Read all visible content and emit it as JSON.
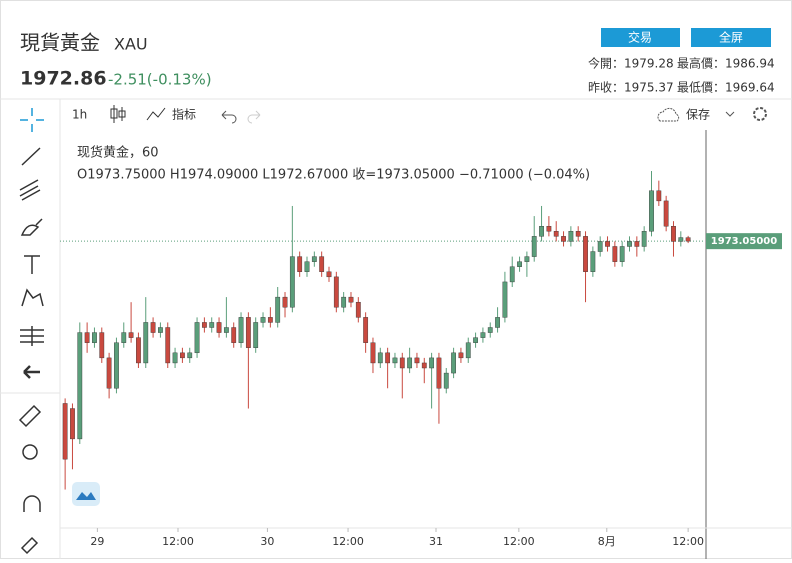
{
  "header": {
    "title": "現貨黃金",
    "symbol": "XAU",
    "price": "1972.86",
    "change": "-2.51(-0.13%)",
    "buttons": [
      "交易",
      "全屏"
    ],
    "stats": [
      "今開：1979.28",
      "最高價：1986.94",
      "昨收：1975.37",
      "最低價：1969.64"
    ]
  },
  "toolbar": {
    "interval": "1h",
    "indicators": "指标",
    "save": "保存"
  },
  "legend": {
    "name": "现货黄金，60",
    "ohlc": "O1973.75000  H1974.09000  L1972.67000  收=1973.05000  −0.71000 (−0.04%)"
  },
  "chart_data": {
    "type": "candlestick",
    "up_color": "#5a9e7a",
    "down_color": "#c9493f",
    "xlim": [
      -0.7,
      87.3
    ],
    "ylim": [
      1917,
      1995
    ],
    "xticks": [
      {
        "value": 4.4,
        "label": "29"
      },
      {
        "value": 15.4,
        "label": "12:00"
      },
      {
        "value": 27.6,
        "label": "30"
      },
      {
        "value": 38.6,
        "label": "12:00"
      },
      {
        "value": 50.6,
        "label": "31"
      },
      {
        "value": 61.9,
        "label": "12:00"
      },
      {
        "value": 73.9,
        "label": "8月"
      },
      {
        "value": 85,
        "label": "12:00"
      }
    ],
    "last_price": {
      "value": 1973.05,
      "label": "1973.05000"
    },
    "open": [
      1941,
      1940,
      1934,
      1955,
      1953,
      1955,
      1950,
      1944,
      1953,
      1955,
      1954,
      1949,
      1957,
      1955,
      1956,
      1949,
      1951,
      1950,
      1951,
      1957,
      1956,
      1957,
      1955,
      1956,
      1953,
      1958,
      1952,
      1957,
      1958,
      1957,
      1962,
      1960,
      1970,
      1967,
      1969,
      1970,
      1967,
      1966,
      1960,
      1962,
      1961,
      1958,
      1953,
      1949,
      1951,
      1949,
      1950,
      1948,
      1950,
      1949,
      1948,
      1950,
      1944,
      1947,
      1951,
      1950,
      1953,
      1954,
      1955,
      1956,
      1958,
      1965,
      1968,
      1969,
      1970,
      1974,
      1976,
      1975,
      1974,
      1973,
      1975,
      1974,
      1967,
      1971,
      1973,
      1972,
      1969,
      1972,
      1973,
      1972,
      1975,
      1983,
      1981,
      1976,
      1973,
      1973.75
    ],
    "high": [
      1942,
      1941,
      1957,
      1957,
      1956,
      1956,
      1951,
      1954,
      1957,
      1961,
      1955,
      1962,
      1958,
      1957,
      1957,
      1952,
      1952,
      1952,
      1958,
      1958,
      1958,
      1958,
      1962,
      1957,
      1959,
      1959,
      1958,
      1959,
      1960,
      1964,
      1963,
      1980,
      1971,
      1970,
      1971,
      1971,
      1968,
      1967,
      1963,
      1963,
      1962,
      1959,
      1954,
      1952,
      1952,
      1951,
      1951,
      1952,
      1951,
      1950,
      1951,
      1951,
      1948,
      1952,
      1952,
      1954,
      1955,
      1956,
      1957,
      1960,
      1967,
      1970,
      1970,
      1971,
      1978,
      1980,
      1978,
      1977,
      1975,
      1976,
      1976,
      1975,
      1972,
      1974,
      1974,
      1973,
      1973,
      1974,
      1974,
      1976,
      1986.9,
      1985,
      1982,
      1977,
      1975,
      1974.09
    ],
    "low": [
      1924,
      1928,
      1933,
      1951,
      1952,
      1949,
      1942,
      1943,
      1952,
      1953,
      1948,
      1948,
      1954,
      1954,
      1948,
      1948,
      1949,
      1949,
      1950,
      1955,
      1955,
      1954,
      1954,
      1952,
      1952,
      1940,
      1951,
      1956,
      1956,
      1956,
      1958,
      1959,
      1966,
      1966,
      1968,
      1966,
      1965,
      1959,
      1959,
      1960,
      1957,
      1951,
      1947,
      1948,
      1944,
      1948,
      1942,
      1947,
      1948,
      1945,
      1940,
      1937,
      1943,
      1946,
      1949,
      1949,
      1952,
      1953,
      1954,
      1955,
      1957,
      1964,
      1967,
      1966,
      1969,
      1973,
      1974,
      1973,
      1972,
      1972,
      1973,
      1961,
      1966,
      1970,
      1971,
      1968,
      1968,
      1971,
      1970,
      1971,
      1974,
      1980,
      1975,
      1970,
      1972,
      1972.67
    ],
    "close": [
      1930,
      1934,
      1955,
      1953,
      1955,
      1950,
      1944,
      1953,
      1955,
      1954,
      1949,
      1957,
      1955,
      1956,
      1949,
      1951,
      1950,
      1951,
      1957,
      1956,
      1957,
      1955,
      1956,
      1953,
      1958,
      1952,
      1957,
      1958,
      1957,
      1962,
      1960,
      1970,
      1967,
      1969,
      1970,
      1967,
      1966,
      1960,
      1962,
      1961,
      1958,
      1953,
      1949,
      1951,
      1949,
      1950,
      1948,
      1950,
      1949,
      1948,
      1950,
      1944,
      1947,
      1951,
      1950,
      1953,
      1954,
      1955,
      1956,
      1958,
      1965,
      1968,
      1969,
      1970,
      1974,
      1976,
      1975,
      1974,
      1973,
      1975,
      1974,
      1967,
      1971,
      1973,
      1972,
      1969,
      1972,
      1973,
      1972,
      1975,
      1983,
      1981,
      1976,
      1973,
      1973.76,
      1973.05
    ]
  }
}
